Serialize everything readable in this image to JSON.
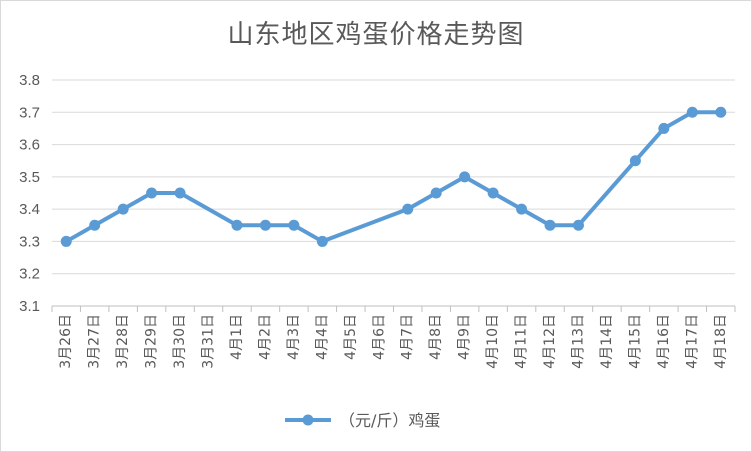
{
  "chart_data": {
    "type": "line",
    "title": "山东地区鸡蛋价格走势图",
    "xlabel": "",
    "ylabel": "",
    "ylim": [
      3.1,
      3.8
    ],
    "yticks": [
      "3.1",
      "3.2",
      "3.3",
      "3.4",
      "3.5",
      "3.6",
      "3.7",
      "3.8"
    ],
    "grid": true,
    "legend_position": "bottom",
    "categories": [
      "3月26日",
      "3月27日",
      "3月28日",
      "3月29日",
      "3月30日",
      "3月31日",
      "4月1日",
      "4月2日",
      "4月3日",
      "4月4日",
      "4月5日",
      "4月6日",
      "4月7日",
      "4月8日",
      "4月9日",
      "4月10日",
      "4月11日",
      "4月12日",
      "4月13日",
      "4月14日",
      "4月15日",
      "4月16日",
      "4月17日",
      "4月18日"
    ],
    "series": [
      {
        "name": "（元/斤）鸡蛋",
        "color": "#5b9bd5",
        "values": [
          3.3,
          3.35,
          3.4,
          3.45,
          3.45,
          null,
          3.35,
          3.35,
          3.35,
          3.3,
          null,
          null,
          3.4,
          3.45,
          3.5,
          3.45,
          3.4,
          3.35,
          3.35,
          null,
          3.55,
          3.65,
          3.7,
          3.7
        ]
      }
    ]
  }
}
